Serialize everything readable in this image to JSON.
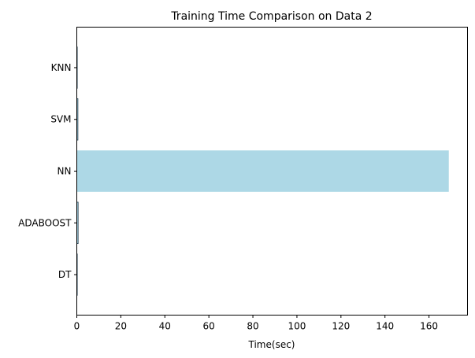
{
  "chart_data": {
    "type": "bar",
    "orientation": "horizontal",
    "title": "Training Time Comparison on Data 2",
    "xlabel": "Time(sec)",
    "ylabel": "",
    "categories": [
      "DT",
      "ADABOOST",
      "NN",
      "SVM",
      "KNN"
    ],
    "values": [
      0.05,
      0.6,
      169,
      0.5,
      0.02
    ],
    "xlim": [
      0,
      177.5
    ],
    "xticks": [
      0,
      20,
      40,
      60,
      80,
      100,
      120,
      140,
      160
    ],
    "grid": false,
    "bar_color": "#add8e6",
    "edge_color": "#1f3b4d"
  }
}
